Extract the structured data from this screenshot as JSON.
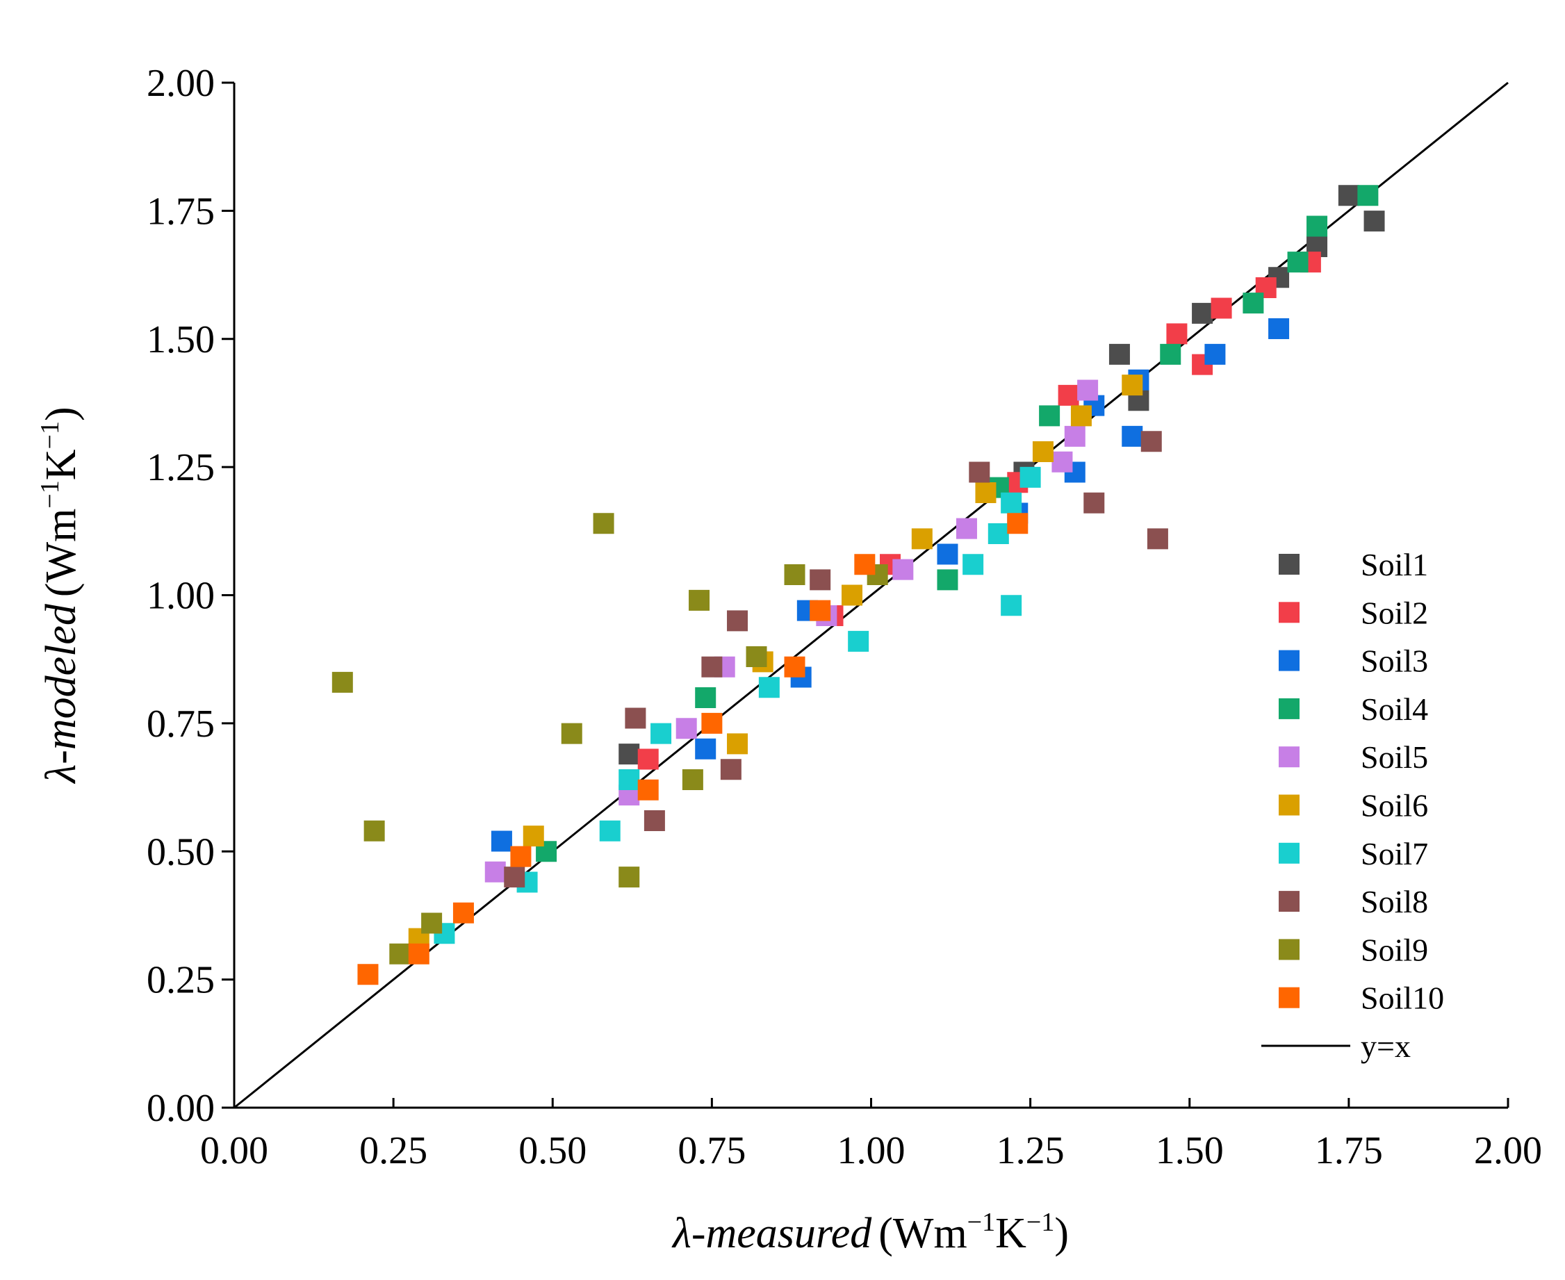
{
  "chart_data": {
    "type": "scatter",
    "title": "",
    "xlabel": {
      "symbol": "λ",
      "name": "-measured",
      "unit": "(Wm",
      "sup1": "−1",
      "unit2": "K",
      "sup2": "−1",
      "close": ")"
    },
    "ylabel": {
      "symbol": "λ",
      "name": "-modeled",
      "unit": "(Wm",
      "sup1": "−1",
      "unit2": "K",
      "sup2": "−1",
      "close": ")"
    },
    "xlim": [
      0,
      2
    ],
    "ylim": [
      0,
      2
    ],
    "xticks": [
      "0.00",
      "0.25",
      "0.50",
      "0.75",
      "1.00",
      "1.25",
      "1.50",
      "1.75",
      "2.00"
    ],
    "yticks": [
      "0.00",
      "0.25",
      "0.50",
      "0.75",
      "1.00",
      "1.25",
      "1.50",
      "1.75",
      "2.00"
    ],
    "reference_line": {
      "label": "y=x",
      "color": "#000000"
    },
    "legend_position": "bottom-right",
    "series": [
      {
        "name": "Soil1",
        "color": "#4d4d4d",
        "points": [
          [
            0.62,
            0.69
          ],
          [
            1.24,
            1.24
          ],
          [
            1.39,
            1.47
          ],
          [
            1.42,
            1.38
          ],
          [
            1.52,
            1.55
          ],
          [
            1.64,
            1.62
          ],
          [
            1.7,
            1.68
          ],
          [
            1.75,
            1.78
          ],
          [
            1.79,
            1.73
          ]
        ]
      },
      {
        "name": "Soil2",
        "color": "#f23e49",
        "points": [
          [
            0.65,
            0.68
          ],
          [
            0.94,
            0.96
          ],
          [
            1.03,
            1.06
          ],
          [
            1.23,
            1.22
          ],
          [
            1.31,
            1.39
          ],
          [
            1.48,
            1.51
          ],
          [
            1.52,
            1.45
          ],
          [
            1.55,
            1.56
          ],
          [
            1.62,
            1.6
          ],
          [
            1.69,
            1.65
          ]
        ]
      },
      {
        "name": "Soil3",
        "color": "#0f6fe0",
        "points": [
          [
            0.42,
            0.52
          ],
          [
            0.74,
            0.7
          ],
          [
            0.89,
            0.84
          ],
          [
            0.9,
            0.97
          ],
          [
            1.12,
            1.08
          ],
          [
            1.23,
            1.16
          ],
          [
            1.32,
            1.24
          ],
          [
            1.35,
            1.37
          ],
          [
            1.41,
            1.31
          ],
          [
            1.42,
            1.42
          ],
          [
            1.54,
            1.47
          ],
          [
            1.64,
            1.52
          ]
        ]
      },
      {
        "name": "Soil4",
        "color": "#13a86a",
        "points": [
          [
            0.49,
            0.5
          ],
          [
            0.74,
            0.8
          ],
          [
            1.12,
            1.03
          ],
          [
            1.2,
            1.21
          ],
          [
            1.28,
            1.35
          ],
          [
            1.47,
            1.47
          ],
          [
            1.6,
            1.57
          ],
          [
            1.67,
            1.65
          ],
          [
            1.7,
            1.72
          ],
          [
            1.78,
            1.78
          ]
        ]
      },
      {
        "name": "Soil5",
        "color": "#c77fe6",
        "points": [
          [
            0.41,
            0.46
          ],
          [
            0.62,
            0.61
          ],
          [
            0.71,
            0.74
          ],
          [
            0.77,
            0.86
          ],
          [
            0.93,
            0.96
          ],
          [
            1.05,
            1.05
          ],
          [
            1.15,
            1.13
          ],
          [
            1.3,
            1.26
          ],
          [
            1.32,
            1.31
          ],
          [
            1.34,
            1.4
          ]
        ]
      },
      {
        "name": "Soil6",
        "color": "#daa000",
        "points": [
          [
            0.29,
            0.33
          ],
          [
            0.47,
            0.53
          ],
          [
            0.79,
            0.71
          ],
          [
            0.83,
            0.87
          ],
          [
            0.97,
            1.0
          ],
          [
            1.08,
            1.11
          ],
          [
            1.18,
            1.2
          ],
          [
            1.27,
            1.28
          ],
          [
            1.33,
            1.35
          ],
          [
            1.41,
            1.41
          ]
        ]
      },
      {
        "name": "Soil7",
        "color": "#19cfcf",
        "points": [
          [
            0.33,
            0.34
          ],
          [
            0.46,
            0.44
          ],
          [
            0.59,
            0.54
          ],
          [
            0.62,
            0.64
          ],
          [
            0.67,
            0.73
          ],
          [
            0.84,
            0.82
          ],
          [
            0.98,
            0.91
          ],
          [
            1.16,
            1.06
          ],
          [
            1.2,
            1.12
          ],
          [
            1.22,
            0.98
          ],
          [
            1.22,
            1.18
          ],
          [
            1.25,
            1.23
          ]
        ]
      },
      {
        "name": "Soil8",
        "color": "#8b5050",
        "points": [
          [
            0.44,
            0.45
          ],
          [
            0.63,
            0.76
          ],
          [
            0.66,
            0.56
          ],
          [
            0.75,
            0.86
          ],
          [
            0.78,
            0.66
          ],
          [
            0.79,
            0.95
          ],
          [
            0.92,
            1.03
          ],
          [
            1.17,
            1.24
          ],
          [
            1.35,
            1.18
          ],
          [
            1.44,
            1.3
          ],
          [
            1.45,
            1.11
          ]
        ]
      },
      {
        "name": "Soil9",
        "color": "#8a8a1a",
        "points": [
          [
            0.17,
            0.83
          ],
          [
            0.22,
            0.54
          ],
          [
            0.26,
            0.3
          ],
          [
            0.31,
            0.36
          ],
          [
            0.53,
            0.73
          ],
          [
            0.58,
            1.14
          ],
          [
            0.62,
            0.45
          ],
          [
            0.72,
            0.64
          ],
          [
            0.73,
            0.99
          ],
          [
            0.82,
            0.88
          ],
          [
            0.88,
            1.04
          ],
          [
            1.01,
            1.04
          ]
        ]
      },
      {
        "name": "Soil10",
        "color": "#ff6600",
        "points": [
          [
            0.21,
            0.26
          ],
          [
            0.29,
            0.3
          ],
          [
            0.36,
            0.38
          ],
          [
            0.45,
            0.49
          ],
          [
            0.65,
            0.62
          ],
          [
            0.75,
            0.75
          ],
          [
            0.88,
            0.86
          ],
          [
            0.92,
            0.97
          ],
          [
            0.99,
            1.06
          ],
          [
            1.23,
            1.14
          ]
        ]
      }
    ]
  }
}
